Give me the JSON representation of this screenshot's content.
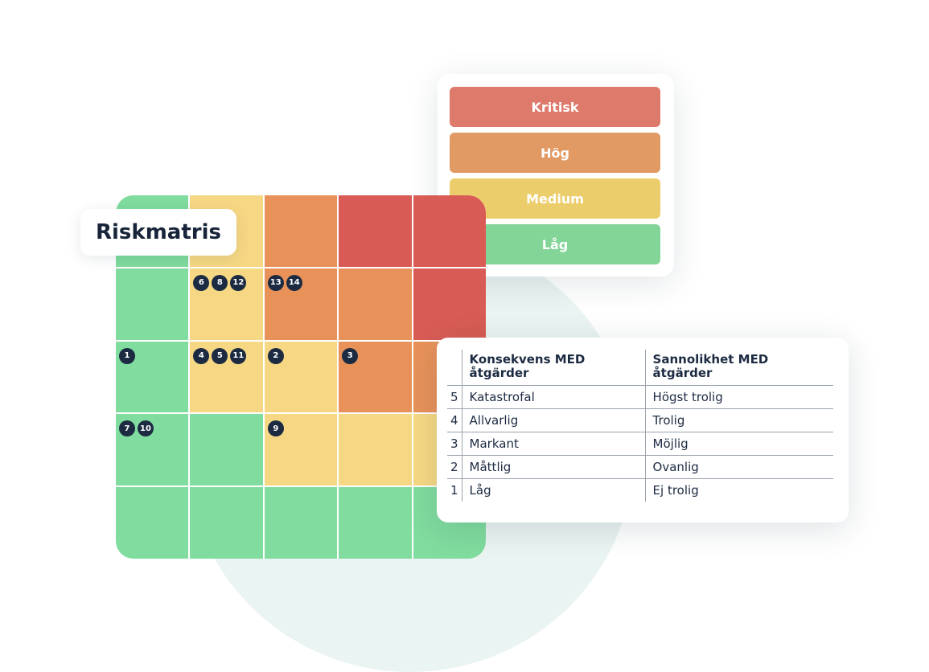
{
  "title": "Riskmatris",
  "legend": [
    {
      "label": "Kritisk",
      "color": "#de7a6b"
    },
    {
      "label": "Hög",
      "color": "#e19a63"
    },
    {
      "label": "Medium",
      "color": "#eccd6b"
    },
    {
      "label": "Låg",
      "color": "#82d497"
    }
  ],
  "matrix": {
    "colors": {
      "g": "#80dc9f",
      "y": "#f6d884",
      "o": "#e8925a",
      "r": "#d85c55"
    },
    "rows": [
      [
        {
          "c": "g",
          "m": []
        },
        {
          "c": "y",
          "m": []
        },
        {
          "c": "o",
          "m": []
        },
        {
          "c": "r",
          "m": []
        },
        {
          "c": "r",
          "m": []
        }
      ],
      [
        {
          "c": "g",
          "m": []
        },
        {
          "c": "y",
          "m": [
            "6",
            "8",
            "12"
          ]
        },
        {
          "c": "o",
          "m": [
            "13",
            "14"
          ]
        },
        {
          "c": "o",
          "m": []
        },
        {
          "c": "r",
          "m": []
        }
      ],
      [
        {
          "c": "g",
          "m": [
            "1"
          ]
        },
        {
          "c": "y",
          "m": [
            "4",
            "5",
            "11"
          ]
        },
        {
          "c": "y",
          "m": [
            "2"
          ]
        },
        {
          "c": "o",
          "m": [
            "3"
          ]
        },
        {
          "c": "o",
          "m": []
        }
      ],
      [
        {
          "c": "g",
          "m": [
            "7",
            "10"
          ]
        },
        {
          "c": "g",
          "m": []
        },
        {
          "c": "y",
          "m": [
            "9"
          ]
        },
        {
          "c": "y",
          "m": []
        },
        {
          "c": "y",
          "m": []
        }
      ],
      [
        {
          "c": "g",
          "m": []
        },
        {
          "c": "g",
          "m": []
        },
        {
          "c": "g",
          "m": []
        },
        {
          "c": "g",
          "m": []
        },
        {
          "c": "g",
          "m": []
        }
      ]
    ]
  },
  "table": {
    "headers": [
      "Konsekvens MED åtgärder",
      "Sannolikhet MED åtgärder"
    ],
    "rows": [
      {
        "num": "5",
        "konsekvens": "Katastrofal",
        "sannolikhet": "Högst trolig"
      },
      {
        "num": "4",
        "konsekvens": "Allvarlig",
        "sannolikhet": "Trolig"
      },
      {
        "num": "3",
        "konsekvens": "Markant",
        "sannolikhet": "Möjlig"
      },
      {
        "num": "2",
        "konsekvens": "Måttlig",
        "sannolikhet": "Ovanlig"
      },
      {
        "num": "1",
        "konsekvens": "Låg",
        "sannolikhet": "Ej trolig"
      }
    ]
  }
}
